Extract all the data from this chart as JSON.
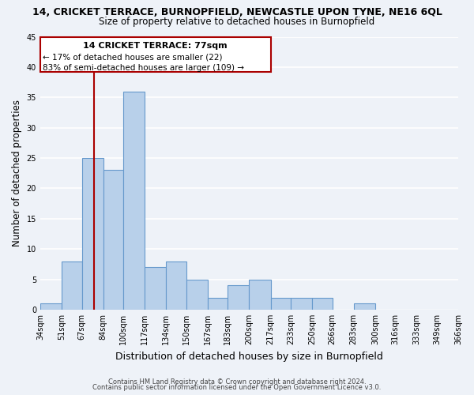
{
  "title": "14, CRICKET TERRACE, BURNOPFIELD, NEWCASTLE UPON TYNE, NE16 6QL",
  "subtitle": "Size of property relative to detached houses in Burnopfield",
  "xlabel": "Distribution of detached houses by size in Burnopfield",
  "ylabel": "Number of detached properties",
  "bar_color": "#b8d0ea",
  "bar_edge_color": "#6699cc",
  "bins": [
    34,
    51,
    67,
    84,
    100,
    117,
    134,
    150,
    167,
    183,
    200,
    217,
    233,
    250,
    266,
    283,
    300,
    316,
    333,
    349,
    366
  ],
  "bin_labels": [
    "34sqm",
    "51sqm",
    "67sqm",
    "84sqm",
    "100sqm",
    "117sqm",
    "134sqm",
    "150sqm",
    "167sqm",
    "183sqm",
    "200sqm",
    "217sqm",
    "233sqm",
    "250sqm",
    "266sqm",
    "283sqm",
    "300sqm",
    "316sqm",
    "333sqm",
    "349sqm",
    "366sqm"
  ],
  "values": [
    1,
    8,
    25,
    23,
    36,
    7,
    8,
    5,
    2,
    4,
    5,
    2,
    2,
    2,
    0,
    1,
    0,
    0,
    0,
    0
  ],
  "ylim": [
    0,
    45
  ],
  "yticks": [
    0,
    5,
    10,
    15,
    20,
    25,
    30,
    35,
    40,
    45
  ],
  "xlim": [
    34,
    366
  ],
  "vline_x": 77,
  "vline_color": "#aa0000",
  "annotation_line1": "14 CRICKET TERRACE: 77sqm",
  "annotation_line2": "← 17% of detached houses are smaller (22)",
  "annotation_line3": "83% of semi-detached houses are larger (109) →",
  "footer_line1": "Contains HM Land Registry data © Crown copyright and database right 2024.",
  "footer_line2": "Contains public sector information licensed under the Open Government Licence v3.0.",
  "background_color": "#eef2f8",
  "grid_color": "#ffffff"
}
